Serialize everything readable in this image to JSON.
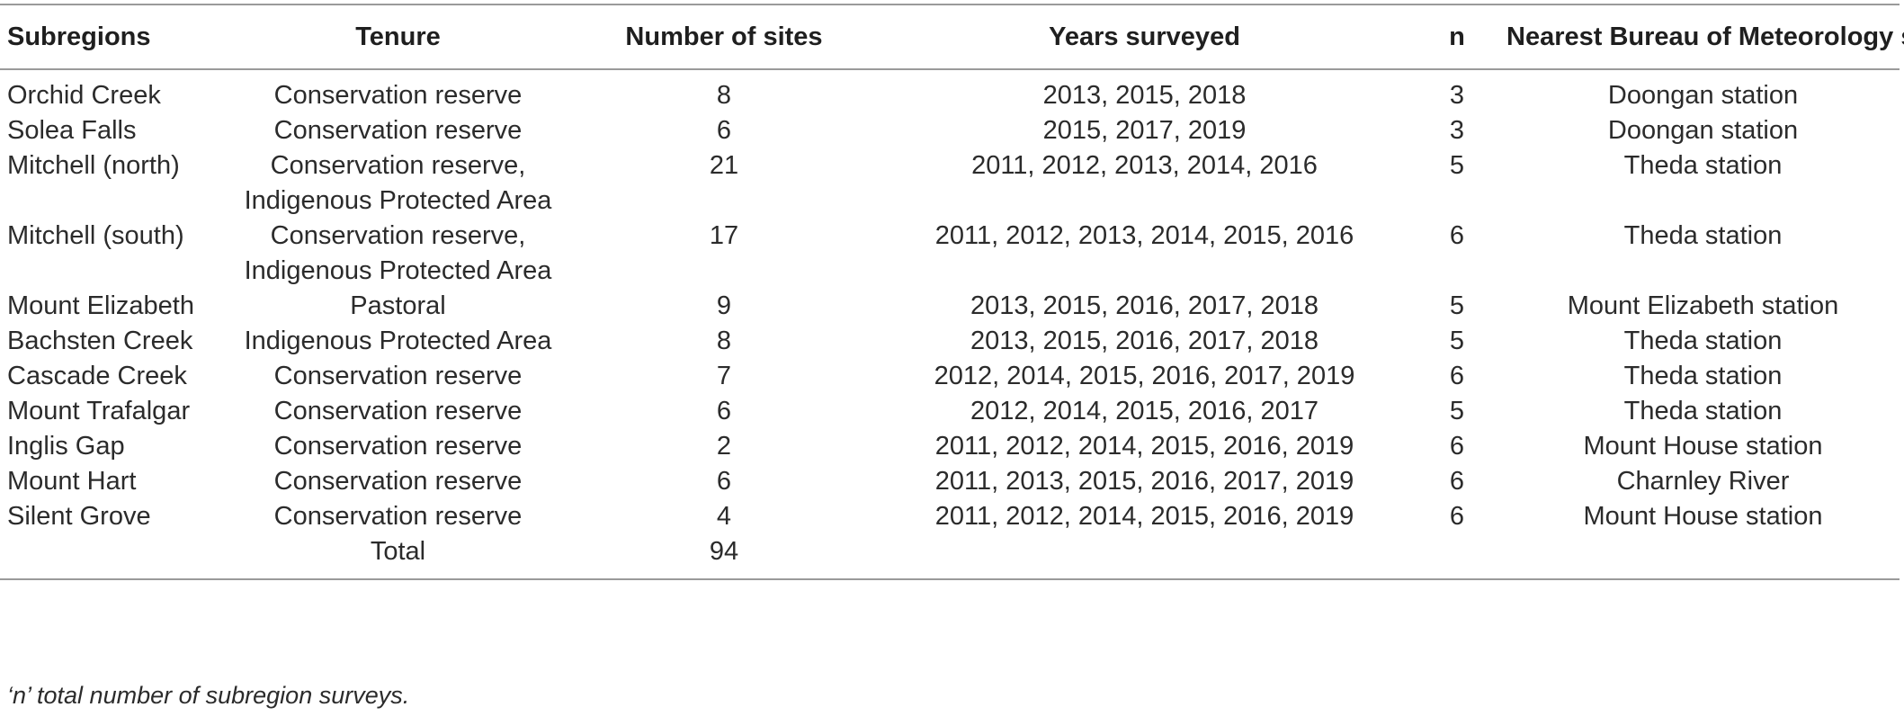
{
  "table": {
    "headers": [
      "Subregions",
      "Tenure",
      "Number of sites",
      "Years surveyed",
      "n",
      "Nearest Bureau of Meteorology station"
    ],
    "rows": [
      {
        "subregion": "Orchid Creek",
        "tenure": [
          "Conservation reserve"
        ],
        "sites": "8",
        "years": "2013, 2015, 2018",
        "n": "3",
        "station": "Doongan station"
      },
      {
        "subregion": "Solea Falls",
        "tenure": [
          "Conservation reserve"
        ],
        "sites": "6",
        "years": "2015, 2017, 2019",
        "n": "3",
        "station": "Doongan station"
      },
      {
        "subregion": "Mitchell (north)",
        "tenure": [
          "Conservation reserve,",
          "Indigenous Protected Area"
        ],
        "sites": "21",
        "years": "2011, 2012, 2013, 2014, 2016",
        "n": "5",
        "station": "Theda station"
      },
      {
        "subregion": "Mitchell (south)",
        "tenure": [
          "Conservation reserve,",
          "Indigenous Protected Area"
        ],
        "sites": "17",
        "years": "2011, 2012, 2013, 2014, 2015, 2016",
        "n": "6",
        "station": "Theda station"
      },
      {
        "subregion": "Mount Elizabeth",
        "tenure": [
          "Pastoral"
        ],
        "sites": "9",
        "years": "2013, 2015, 2016, 2017, 2018",
        "n": "5",
        "station": "Mount Elizabeth station"
      },
      {
        "subregion": "Bachsten Creek",
        "tenure": [
          "Indigenous Protected Area"
        ],
        "sites": "8",
        "years": "2013, 2015, 2016, 2017, 2018",
        "n": "5",
        "station": "Theda station"
      },
      {
        "subregion": "Cascade Creek",
        "tenure": [
          "Conservation reserve"
        ],
        "sites": "7",
        "years": "2012, 2014, 2015, 2016, 2017, 2019",
        "n": "6",
        "station": "Theda station"
      },
      {
        "subregion": "Mount Trafalgar",
        "tenure": [
          "Conservation reserve"
        ],
        "sites": "6",
        "years": "2012, 2014, 2015, 2016, 2017",
        "n": "5",
        "station": "Theda station"
      },
      {
        "subregion": "Inglis Gap",
        "tenure": [
          "Conservation reserve"
        ],
        "sites": "2",
        "years": "2011, 2012, 2014, 2015, 2016, 2019",
        "n": "6",
        "station": "Mount House station"
      },
      {
        "subregion": "Mount Hart",
        "tenure": [
          "Conservation reserve"
        ],
        "sites": "6",
        "years": "2011, 2013, 2015, 2016, 2017, 2019",
        "n": "6",
        "station": "Charnley River"
      },
      {
        "subregion": "Silent Grove",
        "tenure": [
          "Conservation reserve"
        ],
        "sites": "4",
        "years": "2011, 2012, 2014, 2015, 2016, 2019",
        "n": "6",
        "station": "Mount House station"
      }
    ],
    "total": {
      "label": "Total",
      "sites": "94"
    }
  },
  "footnote": "‘n’ total number of subregion surveys."
}
